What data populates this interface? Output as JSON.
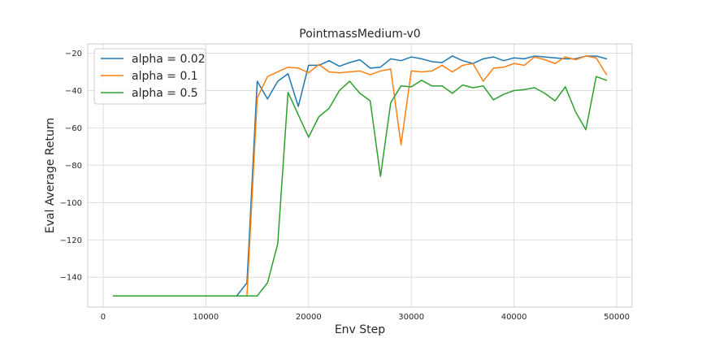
{
  "chart_data": {
    "type": "line",
    "title": "PointmassMedium-v0",
    "xlabel": "Env Step",
    "ylabel": "Eval Average Return",
    "xlim": [
      -1500,
      51500
    ],
    "ylim": [
      -156,
      -15
    ],
    "xticks": [
      0,
      10000,
      20000,
      30000,
      40000,
      50000
    ],
    "yticks": [
      -140,
      -120,
      -100,
      -80,
      -60,
      -40,
      -20
    ],
    "grid": true,
    "legend_position": "upper-left",
    "series": [
      {
        "name": "alpha = 0.02",
        "color": "#1f77b4",
        "x": [
          1000,
          2000,
          3000,
          4000,
          5000,
          6000,
          7000,
          8000,
          9000,
          10000,
          11000,
          12000,
          13000,
          14000,
          15000,
          16000,
          17000,
          18000,
          19000,
          20000,
          21000,
          22000,
          23000,
          24000,
          25000,
          26000,
          27000,
          28000,
          29000,
          30000,
          31000,
          32000,
          33000,
          34000,
          35000,
          36000,
          37000,
          38000,
          39000,
          40000,
          41000,
          42000,
          43000,
          44000,
          45000,
          46000,
          47000,
          48000,
          49000
        ],
        "y": [
          -150,
          -150,
          -150,
          -150,
          -150,
          -150,
          -150,
          -150,
          -150,
          -150,
          -150,
          -150,
          -150,
          -143,
          -35,
          -44.5,
          -35,
          -31,
          -48.5,
          -26.5,
          -26.5,
          -24,
          -27,
          -25,
          -23.5,
          -28,
          -27.5,
          -23,
          -24,
          -22,
          -23,
          -24.5,
          -25,
          -21.5,
          -24,
          -25.5,
          -23,
          -22,
          -24,
          -22.5,
          -23,
          -21.5,
          -22,
          -22.5,
          -23,
          -23,
          -21.5,
          -21.5,
          -23
        ]
      },
      {
        "name": "alpha = 0.1",
        "color": "#ff7f0e",
        "x": [
          1000,
          2000,
          3000,
          4000,
          5000,
          6000,
          7000,
          8000,
          9000,
          10000,
          11000,
          12000,
          13000,
          14000,
          15000,
          16000,
          17000,
          18000,
          19000,
          20000,
          21000,
          22000,
          23000,
          24000,
          25000,
          26000,
          27000,
          28000,
          29000,
          30000,
          31000,
          32000,
          33000,
          34000,
          35000,
          36000,
          37000,
          38000,
          39000,
          40000,
          41000,
          42000,
          43000,
          44000,
          45000,
          46000,
          47000,
          48000,
          49000
        ],
        "y": [
          -150,
          -150,
          -150,
          -150,
          -150,
          -150,
          -150,
          -150,
          -150,
          -150,
          -150,
          -150,
          -150,
          -150,
          -44,
          -32.5,
          -30,
          -27.5,
          -28,
          -30.5,
          -26,
          -30,
          -30.5,
          -30,
          -29.5,
          -31.5,
          -29.5,
          -28.5,
          -69,
          -29.5,
          -30,
          -29.5,
          -26.5,
          -30,
          -26.5,
          -25.5,
          -35,
          -28,
          -27.5,
          -25.5,
          -26.5,
          -22,
          -23.5,
          -25.5,
          -22,
          -23.5,
          -21.5,
          -22.5,
          -31.5
        ]
      },
      {
        "name": "alpha = 0.5",
        "color": "#2ca02c",
        "x": [
          1000,
          2000,
          3000,
          4000,
          5000,
          6000,
          7000,
          8000,
          9000,
          10000,
          11000,
          12000,
          13000,
          14000,
          15000,
          16000,
          17000,
          18000,
          19000,
          20000,
          21000,
          22000,
          23000,
          24000,
          25000,
          26000,
          27000,
          28000,
          29000,
          30000,
          31000,
          32000,
          33000,
          34000,
          35000,
          36000,
          37000,
          38000,
          39000,
          40000,
          41000,
          42000,
          43000,
          44000,
          45000,
          46000,
          47000,
          48000,
          49000
        ],
        "y": [
          -150,
          -150,
          -150,
          -150,
          -150,
          -150,
          -150,
          -150,
          -150,
          -150,
          -150,
          -150,
          -150,
          -150,
          -150,
          -143,
          -122,
          -41,
          -53,
          -65,
          -54,
          -49.5,
          -40,
          -35,
          -41.5,
          -45.5,
          -86,
          -46.5,
          -37.5,
          -38,
          -34.5,
          -37.5,
          -37.5,
          -41.5,
          -37,
          -38.5,
          -37.5,
          -45,
          -42,
          -40,
          -39.5,
          -38.5,
          -41.5,
          -45.5,
          -38,
          -51.5,
          -61,
          -32.5,
          -34.5
        ]
      }
    ]
  }
}
